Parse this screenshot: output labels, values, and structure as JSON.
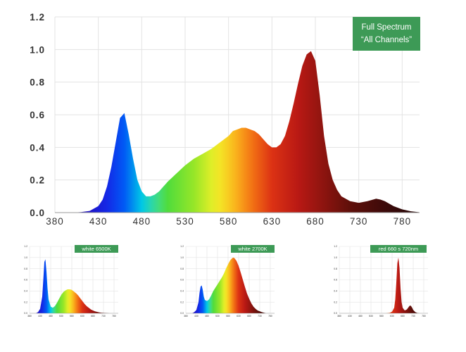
{
  "chart_data": [
    {
      "type": "area",
      "title": "",
      "badge": [
        "Full Spectrum",
        "“All Channels”"
      ],
      "badge_color": "#3d9a56",
      "xlabel": "",
      "ylabel": "",
      "xlim": [
        380,
        800
      ],
      "ylim": [
        0,
        1.2
      ],
      "x_ticks": [
        "380",
        "430",
        "480",
        "530",
        "580",
        "630",
        "680",
        "730",
        "780"
      ],
      "y_ticks": [
        "0.0",
        "0.2",
        "0.4",
        "0.6",
        "0.8",
        "1.0",
        "1.2"
      ],
      "grid": true,
      "x": [
        400,
        410,
        420,
        430,
        435,
        440,
        445,
        450,
        455,
        460,
        465,
        470,
        475,
        480,
        485,
        490,
        495,
        500,
        505,
        510,
        520,
        530,
        540,
        550,
        560,
        570,
        580,
        585,
        590,
        595,
        600,
        605,
        610,
        615,
        620,
        625,
        630,
        635,
        640,
        645,
        650,
        655,
        660,
        665,
        670,
        675,
        680,
        685,
        690,
        695,
        700,
        705,
        710,
        720,
        730,
        740,
        750,
        755,
        760,
        770,
        780,
        790,
        800
      ],
      "y": [
        0.0,
        0.003,
        0.01,
        0.04,
        0.08,
        0.16,
        0.28,
        0.43,
        0.58,
        0.61,
        0.48,
        0.33,
        0.2,
        0.13,
        0.1,
        0.1,
        0.11,
        0.13,
        0.16,
        0.19,
        0.24,
        0.29,
        0.33,
        0.36,
        0.39,
        0.43,
        0.47,
        0.5,
        0.51,
        0.52,
        0.52,
        0.51,
        0.5,
        0.48,
        0.45,
        0.42,
        0.4,
        0.4,
        0.42,
        0.47,
        0.56,
        0.67,
        0.79,
        0.9,
        0.97,
        0.99,
        0.93,
        0.72,
        0.47,
        0.3,
        0.2,
        0.14,
        0.1,
        0.07,
        0.06,
        0.07,
        0.085,
        0.08,
        0.07,
        0.04,
        0.02,
        0.008,
        0.002
      ]
    },
    {
      "type": "area",
      "badge": [
        "white 6500K"
      ],
      "badge_color": "#3d9a56",
      "xlim": [
        380,
        800
      ],
      "ylim": [
        0,
        1.2
      ],
      "x_ticks": [
        "380",
        "430",
        "480",
        "530",
        "580",
        "630",
        "680",
        "730",
        "780"
      ],
      "y_ticks": [
        "0.0",
        "0.2",
        "0.4",
        "0.6",
        "0.8",
        "1.0",
        "1.2"
      ],
      "grid": true,
      "x": [
        410,
        420,
        430,
        440,
        445,
        450,
        455,
        460,
        465,
        470,
        480,
        490,
        500,
        510,
        520,
        530,
        540,
        550,
        560,
        570,
        580,
        590,
        600,
        610,
        620,
        630,
        640,
        650,
        660,
        670,
        680,
        690,
        700,
        710,
        720,
        740,
        760
      ],
      "y": [
        0.0,
        0.02,
        0.08,
        0.3,
        0.6,
        0.92,
        0.97,
        0.75,
        0.45,
        0.25,
        0.12,
        0.1,
        0.13,
        0.19,
        0.26,
        0.33,
        0.38,
        0.41,
        0.43,
        0.43,
        0.42,
        0.39,
        0.36,
        0.32,
        0.27,
        0.22,
        0.17,
        0.13,
        0.1,
        0.07,
        0.05,
        0.035,
        0.025,
        0.015,
        0.01,
        0.004,
        0.0
      ]
    },
    {
      "type": "area",
      "badge": [
        "white 2700K"
      ],
      "badge_color": "#3d9a56",
      "xlim": [
        380,
        800
      ],
      "ylim": [
        0,
        1.2
      ],
      "x_ticks": [
        "380",
        "430",
        "480",
        "530",
        "580",
        "630",
        "680",
        "730",
        "780"
      ],
      "y_ticks": [
        "0.0",
        "0.2",
        "0.4",
        "0.6",
        "0.8",
        "1.0",
        "1.2"
      ],
      "grid": true,
      "x": [
        410,
        420,
        430,
        440,
        445,
        450,
        455,
        460,
        465,
        470,
        480,
        490,
        500,
        510,
        520,
        530,
        540,
        550,
        560,
        570,
        580,
        590,
        600,
        605,
        610,
        620,
        630,
        640,
        650,
        660,
        670,
        680,
        690,
        700,
        710,
        720,
        740,
        760
      ],
      "y": [
        0.0,
        0.02,
        0.06,
        0.2,
        0.37,
        0.48,
        0.5,
        0.42,
        0.3,
        0.24,
        0.22,
        0.25,
        0.32,
        0.4,
        0.46,
        0.52,
        0.58,
        0.64,
        0.71,
        0.8,
        0.88,
        0.95,
        0.99,
        1.0,
        0.99,
        0.94,
        0.85,
        0.73,
        0.6,
        0.47,
        0.35,
        0.26,
        0.18,
        0.12,
        0.08,
        0.05,
        0.02,
        0.0
      ]
    },
    {
      "type": "area",
      "badge": [
        "red 660 s 720nm"
      ],
      "badge_color": "#3d9a56",
      "xlim": [
        380,
        800
      ],
      "ylim": [
        0,
        1.2
      ],
      "x_ticks": [
        "380",
        "430",
        "480",
        "530",
        "580",
        "630",
        "680",
        "730",
        "780"
      ],
      "y_ticks": [
        "0.0",
        "0.2",
        "0.4",
        "0.6",
        "0.8",
        "1.0",
        "1.2"
      ],
      "grid": true,
      "x": [
        600,
        620,
        630,
        640,
        645,
        650,
        655,
        660,
        665,
        670,
        675,
        680,
        690,
        700,
        710,
        715,
        720,
        725,
        730,
        740,
        750,
        760
      ],
      "y": [
        0.0,
        0.01,
        0.03,
        0.1,
        0.25,
        0.55,
        0.9,
        1.0,
        0.82,
        0.45,
        0.2,
        0.1,
        0.05,
        0.07,
        0.12,
        0.14,
        0.13,
        0.1,
        0.06,
        0.02,
        0.005,
        0.0
      ]
    }
  ]
}
